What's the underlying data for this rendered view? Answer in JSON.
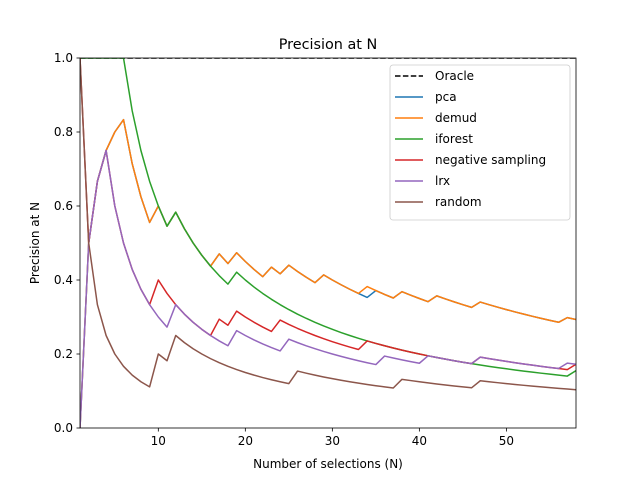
{
  "chart_data": {
    "type": "line",
    "title": "Precision at N",
    "xlabel": "Number of selections (N)",
    "ylabel": "Precision at N",
    "xlim": [
      1,
      58
    ],
    "ylim": [
      0,
      1
    ],
    "xticks": [
      10,
      20,
      30,
      40,
      50
    ],
    "yticks": [
      0.0,
      0.2,
      0.4,
      0.6,
      0.8,
      1.0
    ],
    "ytick_labels": [
      "0.0",
      "0.2",
      "0.4",
      "0.6",
      "0.8",
      "1.0"
    ],
    "legend_position": "top-right",
    "grid": false,
    "series": [
      {
        "name": "Oracle",
        "color": "#000000",
        "dash": true,
        "x": [
          1,
          58
        ],
        "y": [
          1.0,
          1.0
        ]
      },
      {
        "name": "pca",
        "color": "#1f77b4",
        "dash": false,
        "hits": [
          2,
          3,
          4,
          5,
          6,
          10,
          12,
          17,
          19,
          23,
          25,
          29,
          35,
          38,
          42,
          47,
          57
        ]
      },
      {
        "name": "demud",
        "color": "#ff7f0e",
        "dash": false,
        "hits": [
          2,
          3,
          4,
          5,
          6,
          10,
          12,
          17,
          19,
          23,
          25,
          29,
          34,
          38,
          42,
          47,
          57
        ]
      },
      {
        "name": "iforest",
        "color": "#2ca02c",
        "dash": false,
        "hits": [
          1,
          2,
          3,
          4,
          5,
          6,
          12,
          19,
          58
        ]
      },
      {
        "name": "negative sampling",
        "color": "#d62728",
        "dash": false,
        "hits": [
          1,
          3,
          4,
          10,
          17,
          19,
          24,
          34,
          47,
          58
        ]
      },
      {
        "name": "lrx",
        "color": "#9467bd",
        "dash": false,
        "hits": [
          2,
          3,
          4,
          12,
          19,
          25,
          36,
          41,
          47,
          57
        ]
      },
      {
        "name": "random",
        "color": "#8c564b",
        "dash": false,
        "hits": [
          1,
          10,
          12,
          26,
          38,
          47
        ]
      }
    ]
  }
}
